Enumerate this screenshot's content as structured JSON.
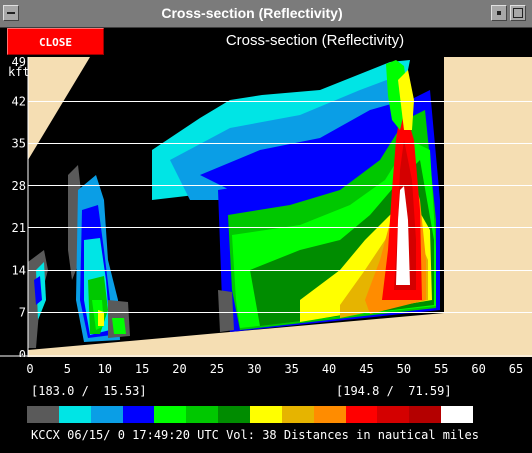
{
  "window": {
    "title": "Cross-section (Reflectivity)",
    "system_menu_icon": "window-menu-icon",
    "minimize_icon": "minimize-icon",
    "maximize_icon": "maximize-icon"
  },
  "toolbar": {
    "close_label": "CLOSE",
    "panel_title": "Cross-section (Reflectivity)"
  },
  "chart_data": {
    "type": "heatmap",
    "title": "Cross-section (Reflectivity)",
    "yunit": "kft",
    "y_ticks": [
      "0",
      "7",
      "14",
      "21",
      "28",
      "35",
      "42",
      "49"
    ],
    "x_ticks": [
      "0",
      "5",
      "10",
      "15",
      "20",
      "25",
      "30",
      "35",
      "40",
      "45",
      "50",
      "55",
      "60",
      "65"
    ],
    "xlim": [
      0,
      65
    ],
    "ylim": [
      0,
      49
    ],
    "grid": true
  },
  "coords": {
    "left": "[183.0 /  15.53]",
    "right": "[194.8 /  71.59]"
  },
  "color_scale": [
    "#5a5a5a",
    "#00e5e5",
    "#0a9ee6",
    "#0000ff",
    "#00ff00",
    "#00c800",
    "#008c00",
    "#ffff00",
    "#e6b400",
    "#ff8c00",
    "#ff0000",
    "#d40000",
    "#b40000",
    "#ffffff"
  ],
  "footer": {
    "status": "KCCX 06/15/ 0 17:49:20 UTC Vol: 38 Distances in nautical miles"
  }
}
